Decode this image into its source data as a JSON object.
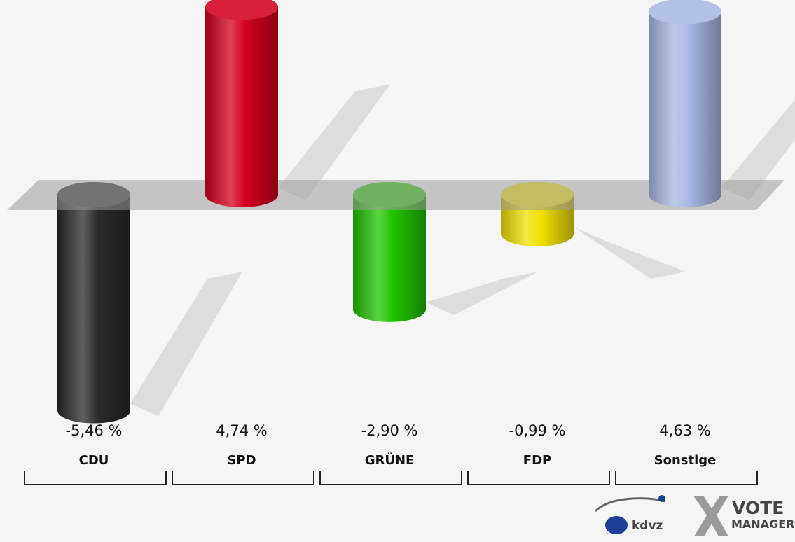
{
  "chart_data": {
    "type": "bar",
    "categories": [
      "CDU",
      "SPD",
      "GRÜNE",
      "FDP",
      "Sonstige"
    ],
    "values": [
      -5.46,
      4.74,
      -2.9,
      -0.99,
      4.63
    ],
    "value_labels": [
      "-5,46 %",
      "4,74 %",
      "-2,90 %",
      "-0,99 %",
      "4,63 %"
    ],
    "colors": [
      "#2b2b2b",
      "#d4001e",
      "#22c400",
      "#f0e000",
      "#a9b8e4"
    ],
    "title": "",
    "xlabel": "",
    "ylabel": "",
    "grid": false,
    "style": "3d-cylinder"
  },
  "logo": {
    "kdvz": "kdvz",
    "vote": "VOTE",
    "manager": "MANAGER"
  }
}
